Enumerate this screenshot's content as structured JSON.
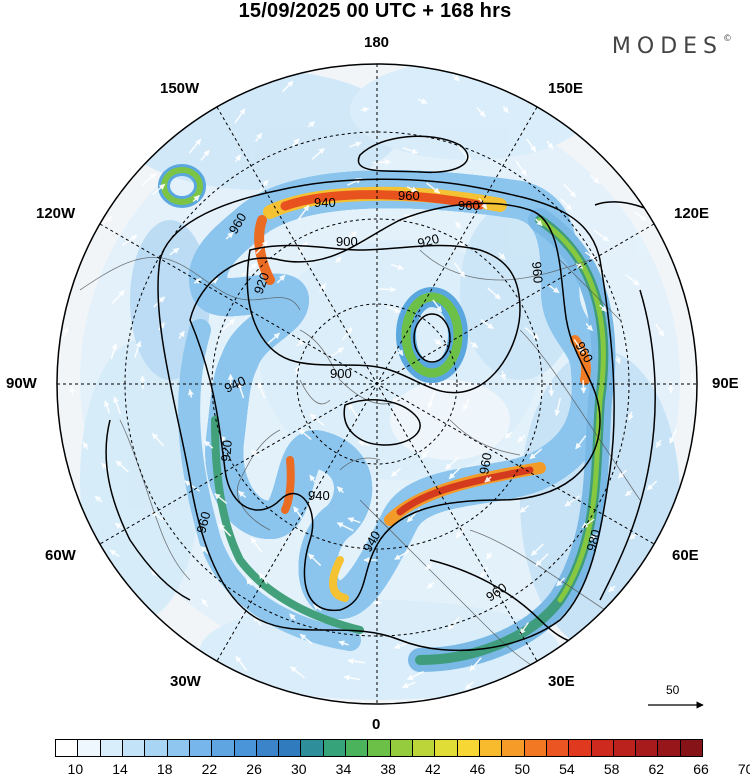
{
  "title": "15/09/2025  00 UTC  + 168 hrs",
  "brand": "MODES",
  "brand_mark": "©",
  "longitude_labels": {
    "north": "180",
    "south": "0",
    "nw_150": "150W",
    "ne_150": "150E",
    "w_120": "120W",
    "e_120": "120E",
    "w_90": "90W",
    "e_90": "90E",
    "w_60": "60W",
    "e_60": "60E",
    "w_30": "30W",
    "e_30": "30E"
  },
  "contour_labels": [
    "960",
    "940",
    "960",
    "960",
    "900",
    "920",
    "920",
    "940",
    "960",
    "900",
    "940",
    "920",
    "960",
    "960",
    "940",
    "960",
    "980",
    "960",
    "940"
  ],
  "reference_vector": "50",
  "colorbar": {
    "tick_labels": [
      "10",
      "14",
      "18",
      "22",
      "26",
      "30",
      "34",
      "38",
      "42",
      "46",
      "50",
      "54",
      "58",
      "62",
      "66",
      "70"
    ],
    "colors": [
      "#ffffff",
      "#eef7fd",
      "#d9eefb",
      "#c2e3f8",
      "#a8d5f4",
      "#8fc6ef",
      "#76b6ea",
      "#5fa5e2",
      "#4a94d9",
      "#3b84ca",
      "#2f7bbd",
      "#2e8f9a",
      "#36a37a",
      "#4bb35c",
      "#6cc048",
      "#94cc3e",
      "#bcd63a",
      "#dfdd36",
      "#f6d733",
      "#f8bb2d",
      "#f69a28",
      "#f27824",
      "#ea5521",
      "#df3a1f",
      "#cf2a1e",
      "#bb211d",
      "#a81b1c",
      "#96161a",
      "#861318"
    ]
  }
}
